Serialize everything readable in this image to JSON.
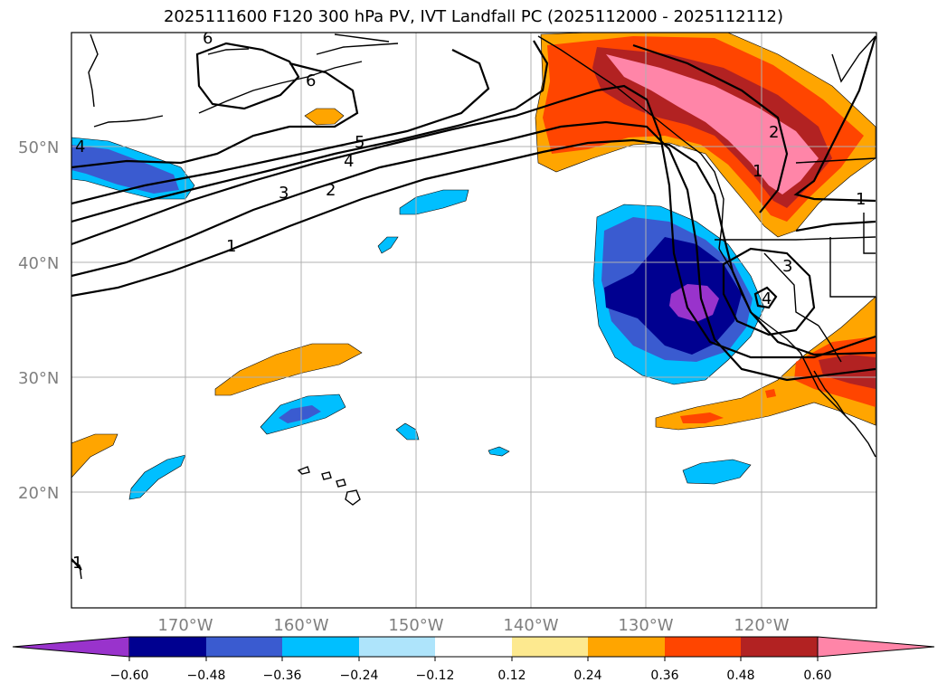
{
  "title": "2025111600 F120 300 hPa PV, IVT Landfall PC (2025112000 - 2025112112)",
  "map": {
    "lat_labels": [
      "50°N",
      "40°N",
      "30°N",
      "20°N"
    ],
    "lon_labels": [
      "170°W",
      "160°W",
      "150°W",
      "140°W",
      "130°W",
      "120°W"
    ],
    "contour_labels": [
      "6",
      "6",
      "5",
      "4",
      "3",
      "2",
      "1",
      "4",
      "2",
      "1",
      "3",
      "4",
      "1",
      "1"
    ]
  },
  "colorbar": {
    "ticks": [
      "−0.60",
      "−0.48",
      "−0.36",
      "−0.24",
      "−0.12",
      "0.12",
      "0.24",
      "0.36",
      "0.48",
      "0.60"
    ],
    "colors": [
      "#9933cc",
      "#000090",
      "#3a5bd0",
      "#00bfff",
      "#aee4fb",
      "#ffffff",
      "#fde98f",
      "#ffa500",
      "#ff4500",
      "#b22222",
      "#ff85a8",
      "#ff85a8"
    ]
  },
  "colors": {
    "grid": "#b0b0b0",
    "coast": "#000000",
    "contour": "#000000"
  }
}
